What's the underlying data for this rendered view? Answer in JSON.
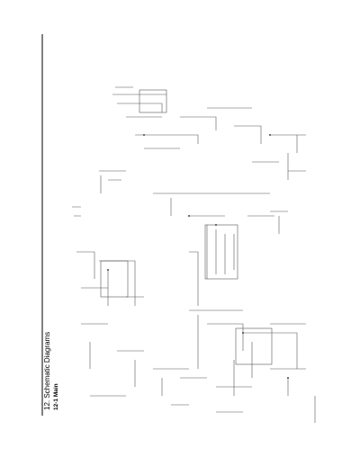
{
  "header": {
    "title": "12. Schematic Diagrams",
    "subtitle": "12-1 Main"
  }
}
